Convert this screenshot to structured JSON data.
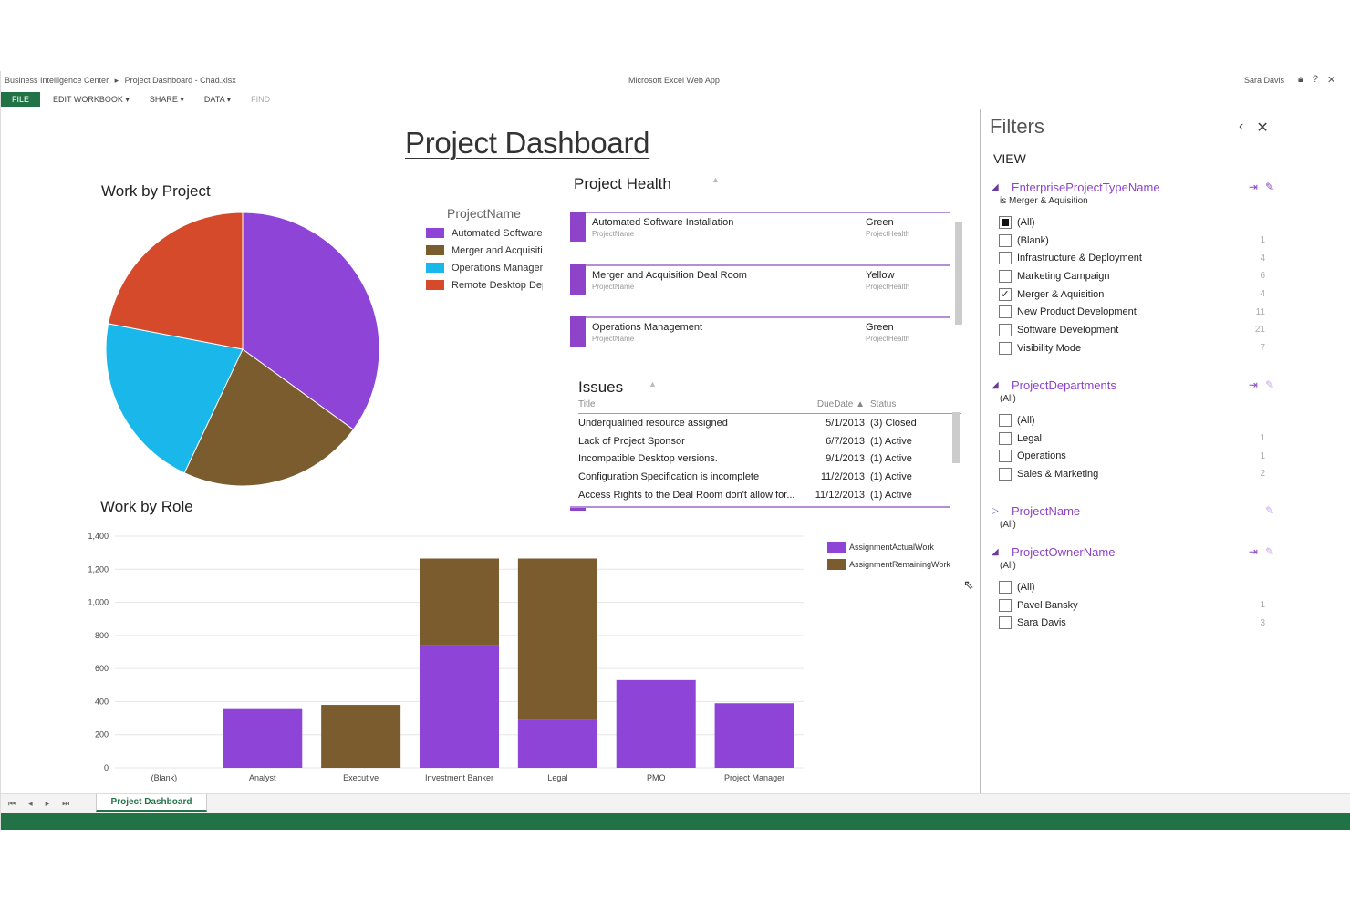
{
  "topbar": {
    "breadcrumb": [
      "Business Intelligence Center",
      "Project Dashboard - Chad.xlsx"
    ],
    "app_title": "Microsoft Excel Web App",
    "user": "Sara Davis"
  },
  "ribbon": {
    "file": "FILE",
    "edit": "EDIT WORKBOOK ▾",
    "share": "SHARE ▾",
    "data": "DATA ▾",
    "find": "FIND"
  },
  "dashboard": {
    "title": "Project Dashboard",
    "work_by_project": "Work by Project",
    "project_health": "Project Health",
    "issues": "Issues",
    "work_by_role": "Work by Role"
  },
  "pie_legend": {
    "header": "ProjectName",
    "items": [
      {
        "label": "Automated Software Installation",
        "color": "#8e44d6"
      },
      {
        "label": "Merger and Acquisition Deal Room",
        "color": "#7a5c2e"
      },
      {
        "label": "Operations Management",
        "color": "#1ab7ea"
      },
      {
        "label": "Remote Desktop Deployment",
        "color": "#d64a2c"
      }
    ]
  },
  "health": {
    "rows": [
      {
        "name": "Automated Software Installation",
        "sub": "ProjectName",
        "value": "Green",
        "vsub": "ProjectHealth"
      },
      {
        "name": "Merger and Acquisition Deal Room",
        "sub": "ProjectName",
        "value": "Yellow",
        "vsub": "ProjectHealth"
      },
      {
        "name": "Operations Management",
        "sub": "ProjectName",
        "value": "Green",
        "vsub": "ProjectHealth"
      }
    ]
  },
  "issues_table": {
    "headers": {
      "title": "Title",
      "due": "DueDate ▲",
      "status": "Status"
    },
    "rows": [
      {
        "title": "Underqualified resource assigned",
        "due": "5/1/2013",
        "status": "(3) Closed"
      },
      {
        "title": "Lack of Project Sponsor",
        "due": "6/7/2013",
        "status": "(1) Active"
      },
      {
        "title": "Incompatible Desktop versions.",
        "due": "9/1/2013",
        "status": "(1) Active"
      },
      {
        "title": "Configuration Specification is incomplete",
        "due": "11/2/2013",
        "status": "(1) Active"
      },
      {
        "title": "Access Rights to the Deal Room don't allow for...",
        "due": "11/12/2013",
        "status": "(1) Active"
      }
    ]
  },
  "chart_data": [
    {
      "type": "pie",
      "title": "Work by Project",
      "legend_title": "ProjectName",
      "categories": [
        "Automated Software Installation",
        "Merger and Acquisition Deal Room",
        "Operations Management",
        "Remote Desktop Deployment"
      ],
      "values": [
        35,
        22,
        21,
        22
      ],
      "colors": [
        "#8e44d6",
        "#7a5c2e",
        "#1ab7ea",
        "#d64a2c"
      ]
    },
    {
      "type": "bar",
      "stacked": true,
      "title": "Work by Role",
      "categories": [
        "(Blank)",
        "Analyst",
        "Executive",
        "Investment Banker",
        "Legal",
        "PMO",
        "Project Manager"
      ],
      "series": [
        {
          "name": "AssignmentActualWork",
          "color": "#8e44d6",
          "values": [
            0,
            360,
            0,
            740,
            290,
            530,
            390
          ]
        },
        {
          "name": "AssignmentRemainingWork",
          "color": "#7a5c2e",
          "values": [
            0,
            0,
            380,
            525,
            975,
            0,
            0
          ]
        }
      ],
      "ylim": [
        0,
        1400
      ],
      "yticks": [
        "0",
        "200",
        "400",
        "600",
        "800",
        "1,000",
        "1,200",
        "1,400"
      ],
      "grid": true,
      "legend": "right"
    }
  ],
  "filters": {
    "title": "Filters",
    "view": "VIEW",
    "groups": [
      {
        "name": "EnterpriseProjectTypeName",
        "sub": "is Merger & Aquisition",
        "expanded": true,
        "items": [
          {
            "label": "(All)",
            "state": "partial",
            "count": ""
          },
          {
            "label": "(Blank)",
            "state": "off",
            "count": "1"
          },
          {
            "label": "Infrastructure & Deployment",
            "state": "off",
            "count": "4"
          },
          {
            "label": "Marketing Campaign",
            "state": "off",
            "count": "6"
          },
          {
            "label": "Merger & Aquisition",
            "state": "on",
            "count": "4"
          },
          {
            "label": "New Product Development",
            "state": "off",
            "count": "11"
          },
          {
            "label": "Software Development",
            "state": "off",
            "count": "21"
          },
          {
            "label": "Visibility Mode",
            "state": "off",
            "count": "7"
          }
        ]
      },
      {
        "name": "ProjectDepartments",
        "sub": "(All)",
        "expanded": true,
        "items": [
          {
            "label": "(All)",
            "state": "off",
            "count": ""
          },
          {
            "label": "Legal",
            "state": "off",
            "count": "1"
          },
          {
            "label": "Operations",
            "state": "off",
            "count": "1"
          },
          {
            "label": "Sales & Marketing",
            "state": "off",
            "count": "2"
          }
        ]
      },
      {
        "name": "ProjectName",
        "sub": "(All)",
        "expanded": false,
        "items": []
      },
      {
        "name": "ProjectOwnerName",
        "sub": "(All)",
        "expanded": true,
        "items": [
          {
            "label": "(All)",
            "state": "off",
            "count": ""
          },
          {
            "label": "Pavel Bansky",
            "state": "off",
            "count": "1"
          },
          {
            "label": "Sara Davis",
            "state": "off",
            "count": "3"
          }
        ]
      }
    ]
  },
  "sheet": {
    "tab": "Project Dashboard"
  }
}
